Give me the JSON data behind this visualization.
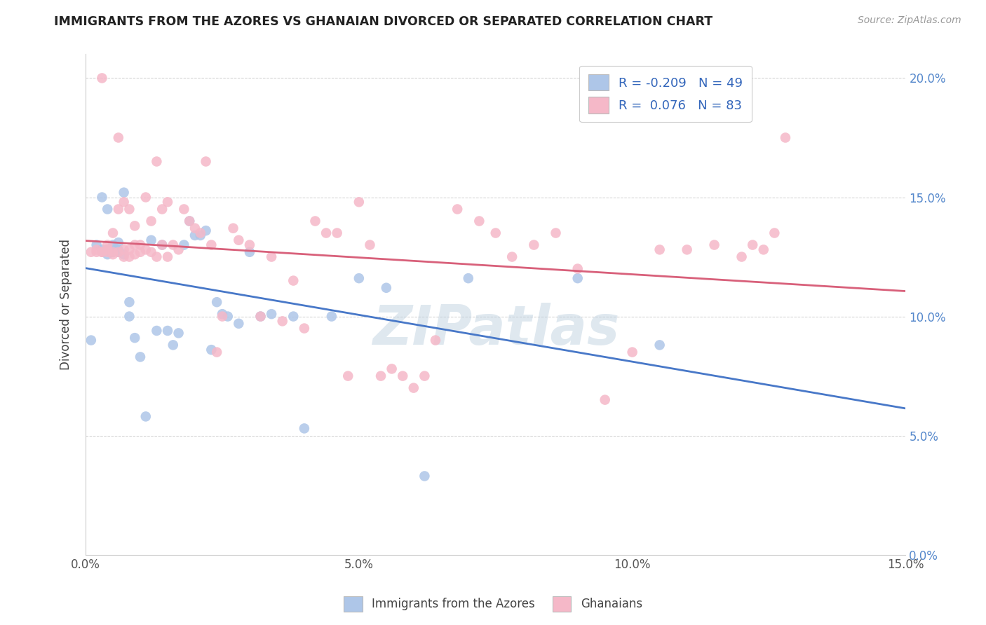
{
  "title": "IMMIGRANTS FROM THE AZORES VS GHANAIAN DIVORCED OR SEPARATED CORRELATION CHART",
  "source": "Source: ZipAtlas.com",
  "ylabel_label": "Divorced or Separated",
  "legend_labels": [
    "Immigrants from the Azores",
    "Ghanaians"
  ],
  "legend_R_blue": "-0.209",
  "legend_R_pink": "0.076",
  "legend_N_blue": "49",
  "legend_N_pink": "83",
  "watermark": "ZIPatlas",
  "blue_color": "#aec6e8",
  "pink_color": "#f5b8c8",
  "blue_line_color": "#4878c8",
  "pink_line_color": "#d8607a",
  "xlim": [
    0.0,
    0.15
  ],
  "ylim": [
    0.0,
    0.21
  ],
  "xtick_vals": [
    0.0,
    0.05,
    0.1,
    0.15
  ],
  "xtick_labels": [
    "0.0%",
    "5.0%",
    "10.0%",
    "15.0%"
  ],
  "ytick_vals": [
    0.0,
    0.05,
    0.1,
    0.15,
    0.2
  ],
  "ytick_labels": [
    "0.0%",
    "5.0%",
    "10.0%",
    "15.0%",
    "20.0%"
  ],
  "blue_scatter_x": [
    0.001,
    0.002,
    0.003,
    0.003,
    0.004,
    0.004,
    0.004,
    0.005,
    0.005,
    0.005,
    0.005,
    0.006,
    0.006,
    0.006,
    0.007,
    0.007,
    0.008,
    0.008,
    0.009,
    0.01,
    0.011,
    0.012,
    0.013,
    0.014,
    0.015,
    0.016,
    0.017,
    0.018,
    0.019,
    0.02,
    0.021,
    0.022,
    0.023,
    0.024,
    0.025,
    0.026,
    0.028,
    0.03,
    0.032,
    0.034,
    0.038,
    0.04,
    0.045,
    0.05,
    0.055,
    0.062,
    0.07,
    0.09,
    0.105
  ],
  "blue_scatter_y": [
    0.09,
    0.13,
    0.15,
    0.128,
    0.145,
    0.128,
    0.126,
    0.127,
    0.127,
    0.128,
    0.13,
    0.128,
    0.127,
    0.131,
    0.152,
    0.126,
    0.1,
    0.106,
    0.091,
    0.083,
    0.058,
    0.132,
    0.094,
    0.13,
    0.094,
    0.088,
    0.093,
    0.13,
    0.14,
    0.134,
    0.134,
    0.136,
    0.086,
    0.106,
    0.101,
    0.1,
    0.097,
    0.127,
    0.1,
    0.101,
    0.1,
    0.053,
    0.1,
    0.116,
    0.112,
    0.033,
    0.116,
    0.116,
    0.088
  ],
  "pink_scatter_x": [
    0.001,
    0.002,
    0.002,
    0.003,
    0.003,
    0.003,
    0.004,
    0.004,
    0.004,
    0.005,
    0.005,
    0.005,
    0.006,
    0.006,
    0.006,
    0.007,
    0.007,
    0.007,
    0.008,
    0.008,
    0.008,
    0.009,
    0.009,
    0.009,
    0.01,
    0.01,
    0.011,
    0.011,
    0.012,
    0.012,
    0.013,
    0.013,
    0.014,
    0.014,
    0.015,
    0.015,
    0.016,
    0.017,
    0.018,
    0.019,
    0.02,
    0.021,
    0.022,
    0.023,
    0.024,
    0.025,
    0.027,
    0.028,
    0.03,
    0.032,
    0.034,
    0.036,
    0.038,
    0.04,
    0.042,
    0.044,
    0.046,
    0.048,
    0.05,
    0.052,
    0.054,
    0.056,
    0.058,
    0.06,
    0.062,
    0.064,
    0.068,
    0.072,
    0.075,
    0.078,
    0.082,
    0.086,
    0.09,
    0.095,
    0.1,
    0.105,
    0.11,
    0.115,
    0.12,
    0.122,
    0.124,
    0.126,
    0.128
  ],
  "pink_scatter_y": [
    0.127,
    0.127,
    0.128,
    0.127,
    0.127,
    0.2,
    0.127,
    0.128,
    0.13,
    0.126,
    0.127,
    0.135,
    0.127,
    0.145,
    0.175,
    0.125,
    0.128,
    0.148,
    0.125,
    0.128,
    0.145,
    0.126,
    0.13,
    0.138,
    0.13,
    0.127,
    0.128,
    0.15,
    0.127,
    0.14,
    0.125,
    0.165,
    0.13,
    0.145,
    0.148,
    0.125,
    0.13,
    0.128,
    0.145,
    0.14,
    0.137,
    0.135,
    0.165,
    0.13,
    0.085,
    0.1,
    0.137,
    0.132,
    0.13,
    0.1,
    0.125,
    0.098,
    0.115,
    0.095,
    0.14,
    0.135,
    0.135,
    0.075,
    0.148,
    0.13,
    0.075,
    0.078,
    0.075,
    0.07,
    0.075,
    0.09,
    0.145,
    0.14,
    0.135,
    0.125,
    0.13,
    0.135,
    0.12,
    0.065,
    0.085,
    0.128,
    0.128,
    0.13,
    0.125,
    0.13,
    0.128,
    0.135,
    0.175
  ]
}
